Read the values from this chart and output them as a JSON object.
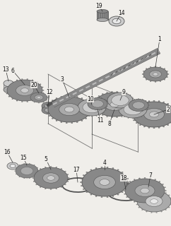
{
  "bg_color": "#f0eeea",
  "fig_width": 2.42,
  "fig_height": 3.2,
  "dpi": 100,
  "gear_dark": "#555555",
  "gear_mid": "#888888",
  "gear_light": "#aaaaaa",
  "gear_vlight": "#cccccc",
  "gear_white": "#e8e8e8",
  "line_color": "#333333",
  "label_color": "#111111",
  "label_fontsize": 5.5,
  "shaft_color": "#222222",
  "shaft_light": "#999999"
}
